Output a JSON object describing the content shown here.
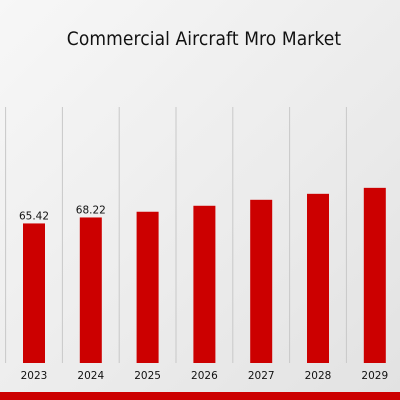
{
  "chart_data": {
    "type": "bar",
    "title": "Commercial Aircraft Mro Market",
    "xlabel": "",
    "ylabel": "",
    "categories": [
      "2023",
      "2024",
      "2025",
      "2026",
      "2027",
      "2028",
      "2029"
    ],
    "values": [
      65.42,
      68.22,
      70.9,
      73.7,
      76.5,
      79.3,
      82.1
    ],
    "data_labels": [
      "65.42",
      "68.22",
      "",
      "",
      "",
      "",
      ""
    ],
    "ylim": [
      0,
      120
    ],
    "grid": "vertical",
    "legend": "none",
    "colors": {
      "bar": "#cc0000",
      "grid": "#c8c8c8",
      "text": "#111111",
      "accent_bar": "#cc0000"
    }
  }
}
